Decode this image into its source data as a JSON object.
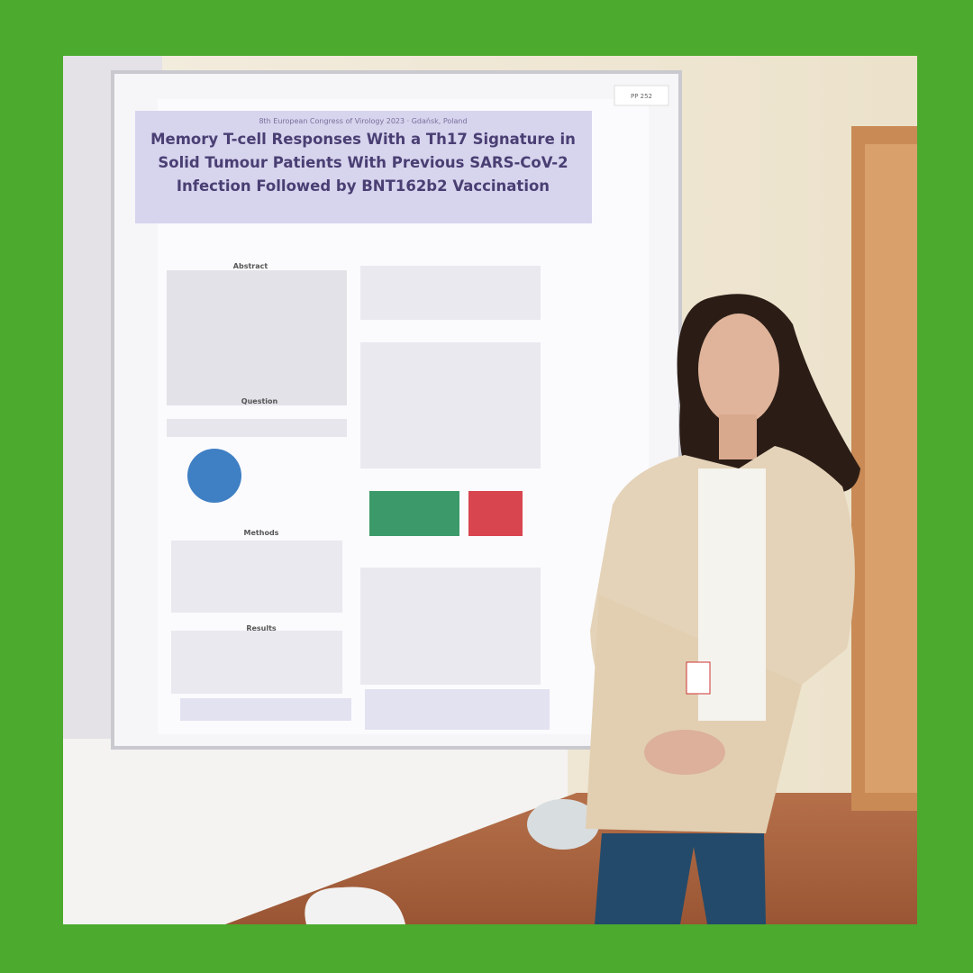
{
  "poster": {
    "tag": "PP 252",
    "conference": "8th European Congress of Virology 2023 · Gdańsk, Poland",
    "title_lines": [
      "Memory T-cell Responses With a Th17 Signature in",
      "Solid Tumour Patients With Previous SARS-CoV-2",
      "Infection Followed by BNT162b2 Vaccination"
    ],
    "sections": [
      "Abstract",
      "Question",
      "Methods",
      "Results"
    ]
  }
}
